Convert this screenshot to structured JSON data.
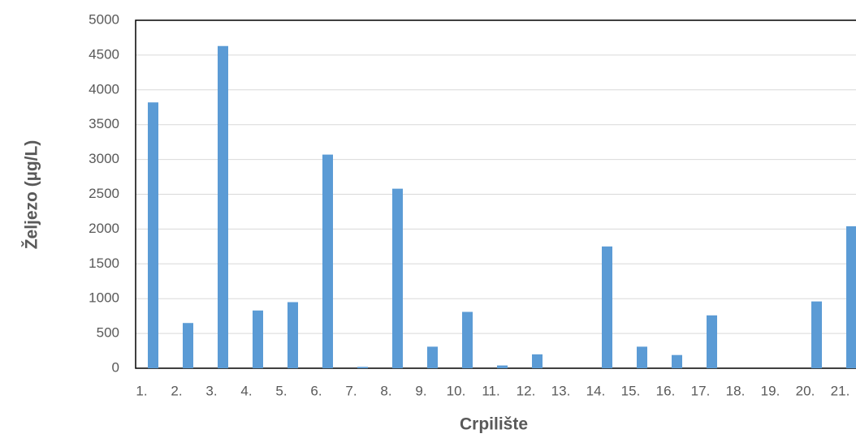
{
  "chart_data": {
    "type": "bar",
    "categories": [
      "1.",
      "2.",
      "3.",
      "4.",
      "5.",
      "6.",
      "7.",
      "8.",
      "9.",
      "10.",
      "11.",
      "12.",
      "13.",
      "14.",
      "15.",
      "16.",
      "17.",
      "18.",
      "19.",
      "20.",
      "21."
    ],
    "values": [
      3820,
      650,
      4630,
      830,
      950,
      3070,
      20,
      2580,
      310,
      810,
      40,
      200,
      0,
      1750,
      310,
      190,
      760,
      0,
      0,
      960,
      2040
    ],
    "color": "#5b9bd5",
    "ylim": [
      0,
      5000
    ],
    "yticks": [
      0,
      500,
      1000,
      1500,
      2000,
      2500,
      3000,
      3500,
      4000,
      4500,
      5000
    ],
    "grid": true,
    "x_label": "Crpilište",
    "y_label": "Željezo (µg/L)"
  }
}
